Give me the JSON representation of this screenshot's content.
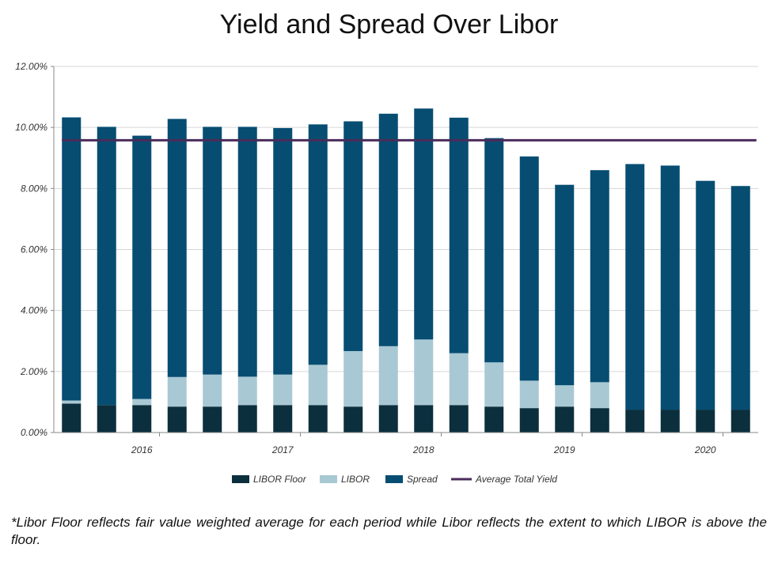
{
  "title": "Yield and Spread Over Libor",
  "footnote": "*Libor Floor reflects fair value weighted average for each period while Libor reflects the extent to which LIBOR is above the floor.",
  "chart_data": {
    "type": "bar",
    "stacked": true,
    "ylim": [
      0,
      12
    ],
    "yticks": [
      "0.00%",
      "2.00%",
      "4.00%",
      "6.00%",
      "8.00%",
      "10.00%",
      "12.00%"
    ],
    "year_labels": [
      {
        "label": "2016",
        "index": 3
      },
      {
        "label": "2017",
        "index": 7
      },
      {
        "label": "2018",
        "index": 11
      },
      {
        "label": "2019",
        "index": 15
      },
      {
        "label": "2020",
        "index": 19
      }
    ],
    "series": [
      {
        "name": "LIBOR Floor",
        "color": "#0b2f3d",
        "values": [
          0.95,
          0.9,
          0.9,
          0.85,
          0.85,
          0.9,
          0.9,
          0.9,
          0.85,
          0.9,
          0.9,
          0.9,
          0.85,
          0.8,
          0.85,
          0.8,
          0.75,
          0.75,
          0.75,
          0.75
        ]
      },
      {
        "name": "LIBOR",
        "color": "#a8c8d4",
        "values": [
          0.1,
          0.0,
          0.2,
          0.97,
          1.05,
          0.93,
          1.0,
          1.32,
          1.82,
          1.93,
          2.15,
          1.7,
          1.45,
          0.9,
          0.7,
          0.85,
          0.0,
          0.0,
          0.0,
          0.0
        ]
      },
      {
        "name": "Spread",
        "color": "#074d72",
        "values": [
          9.28,
          9.12,
          8.63,
          8.46,
          8.12,
          8.19,
          8.08,
          7.88,
          7.53,
          7.62,
          7.57,
          7.72,
          7.35,
          7.35,
          6.57,
          6.95,
          8.05,
          8.0,
          7.5,
          7.33
        ]
      }
    ],
    "line": {
      "name": "Average Total Yield",
      "color": "#4a2c5a",
      "value": 9.58
    },
    "legend": "bottom"
  }
}
